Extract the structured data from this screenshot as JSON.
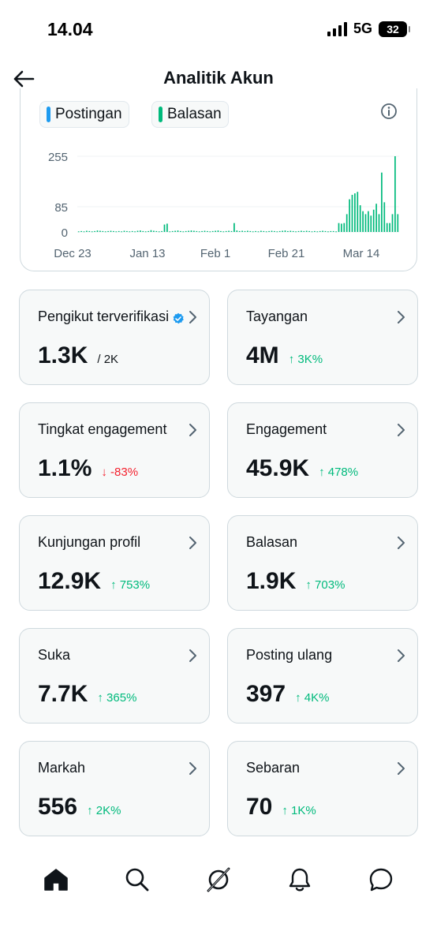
{
  "status": {
    "time": "14.04",
    "network": "5G",
    "battery": "32"
  },
  "header": {
    "title": "Analitik Akun"
  },
  "chart_data": {
    "type": "bar",
    "legend": [
      {
        "name": "Postingan",
        "color": "#1d9bf0"
      },
      {
        "name": "Balasan",
        "color": "#00ba7c"
      }
    ],
    "x_tick_labels": [
      "Dec 23",
      "Jan 13",
      "Feb 1",
      "Feb 21",
      "Mar 14"
    ],
    "y_tick_labels": [
      "255",
      "85",
      "0"
    ],
    "ylim": [
      0,
      270
    ],
    "grid": true,
    "series": [
      {
        "name": "Balasan",
        "values": [
          2,
          3,
          2,
          4,
          3,
          2,
          3,
          5,
          4,
          3,
          2,
          3,
          4,
          3,
          2,
          3,
          2,
          4,
          3,
          2,
          3,
          2,
          4,
          5,
          3,
          2,
          3,
          6,
          4,
          3,
          2,
          3,
          25,
          28,
          2,
          3,
          4,
          5,
          3,
          2,
          3,
          4,
          5,
          4,
          3,
          2,
          3,
          4,
          3,
          2,
          3,
          4,
          5,
          3,
          2,
          3,
          4,
          3,
          30,
          5,
          3,
          4,
          3,
          4,
          3,
          2,
          3,
          2,
          4,
          3,
          2,
          3,
          4,
          3,
          2,
          3,
          4,
          5,
          3,
          4,
          3,
          2,
          3,
          4,
          3,
          4,
          3,
          2,
          3,
          2,
          3,
          4,
          3,
          2,
          3,
          3,
          2,
          30,
          28,
          30,
          60,
          110,
          125,
          130,
          135,
          90,
          70,
          60,
          70,
          55,
          75,
          95,
          60,
          200,
          100,
          30,
          30,
          60,
          255,
          60
        ]
      }
    ]
  },
  "stats": [
    {
      "label": "Pengikut terverifikasi",
      "value": "1.3K",
      "sub": "/ 2K",
      "change": "",
      "direction": "",
      "verified": true
    },
    {
      "label": "Tayangan",
      "value": "4M",
      "sub": "",
      "change": "↑ 3K%",
      "direction": "up",
      "verified": false
    },
    {
      "label": "Tingkat engagement",
      "value": "1.1%",
      "sub": "",
      "change": "↓ -83%",
      "direction": "down",
      "verified": false
    },
    {
      "label": "Engagement",
      "value": "45.9K",
      "sub": "",
      "change": "↑ 478%",
      "direction": "up",
      "verified": false
    },
    {
      "label": "Kunjungan profil",
      "value": "12.9K",
      "sub": "",
      "change": "↑ 753%",
      "direction": "up",
      "verified": false
    },
    {
      "label": "Balasan",
      "value": "1.9K",
      "sub": "",
      "change": "↑ 703%",
      "direction": "up",
      "verified": false
    },
    {
      "label": "Suka",
      "value": "7.7K",
      "sub": "",
      "change": "↑ 365%",
      "direction": "up",
      "verified": false
    },
    {
      "label": "Posting ulang",
      "value": "397",
      "sub": "",
      "change": "↑ 4K%",
      "direction": "up",
      "verified": false
    },
    {
      "label": "Markah",
      "value": "556",
      "sub": "",
      "change": "↑ 2K%",
      "direction": "up",
      "verified": false
    },
    {
      "label": "Sebaran",
      "value": "70",
      "sub": "",
      "change": "↑ 1K%",
      "direction": "up",
      "verified": false
    }
  ],
  "nav": [
    {
      "icon": "home-icon"
    },
    {
      "icon": "search-icon"
    },
    {
      "icon": "grok-icon"
    },
    {
      "icon": "notifications-icon"
    },
    {
      "icon": "messages-icon"
    }
  ],
  "colors": {
    "accent": "#1d9bf0",
    "positive": "#00ba7c",
    "negative": "#f4212e",
    "border": "#cfd9de"
  }
}
